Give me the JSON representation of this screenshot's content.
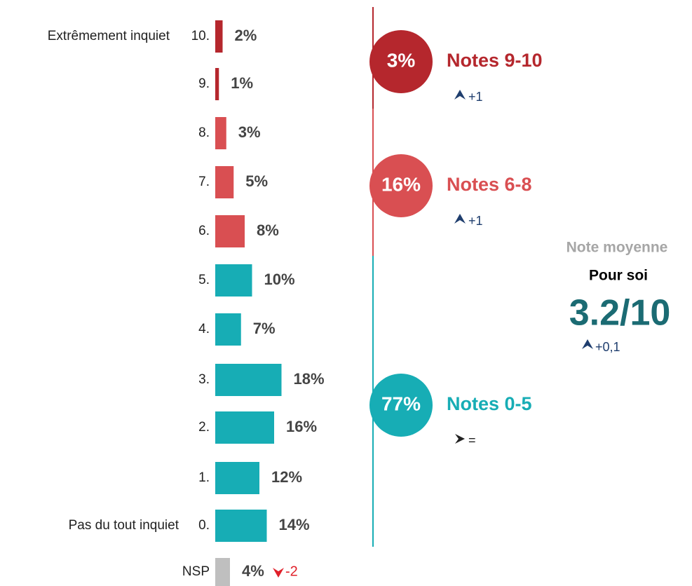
{
  "chart_data": {
    "type": "bar",
    "orientation": "horizontal",
    "categories": [
      "10.",
      "9.",
      "8.",
      "7.",
      "6.",
      "5.",
      "4.",
      "3.",
      "2.",
      "1.",
      "0.",
      "NSP"
    ],
    "values": [
      2,
      1,
      3,
      5,
      8,
      10,
      7,
      18,
      16,
      12,
      14,
      4
    ],
    "value_labels": [
      "2%",
      "1%",
      "3%",
      "5%",
      "8%",
      "10%",
      "7%",
      "18%",
      "16%",
      "12%",
      "14%",
      "4%"
    ],
    "colors": [
      "#b5272d",
      "#b5272d",
      "#d94f52",
      "#d94f52",
      "#d94f52",
      "#17adb5",
      "#17adb5",
      "#17adb5",
      "#17adb5",
      "#17adb5",
      "#17adb5",
      "#bfbfbf"
    ],
    "scale_labels": {
      "top": "Extrêmement inquiet",
      "bottom": "Pas du tout inquiet"
    },
    "nsp_change": {
      "label": "-2",
      "trend": "down",
      "color": "#e0202a"
    },
    "groups": [
      {
        "share": "3%",
        "name": "Notes 9-10",
        "change": "+1",
        "trend": "up",
        "color": "#b5272d"
      },
      {
        "share": "16%",
        "name": "Notes 6-8",
        "change": "+1",
        "trend": "up",
        "color": "#d94f52"
      },
      {
        "share": "77%",
        "name": "Notes 0-5",
        "change": "=",
        "trend": "flat",
        "color": "#17adb5"
      }
    ],
    "mean": {
      "title": "Note moyenne",
      "subtitle": "Pour soi",
      "value": "3.2/10",
      "change": "+0,1",
      "trend": "up"
    }
  }
}
